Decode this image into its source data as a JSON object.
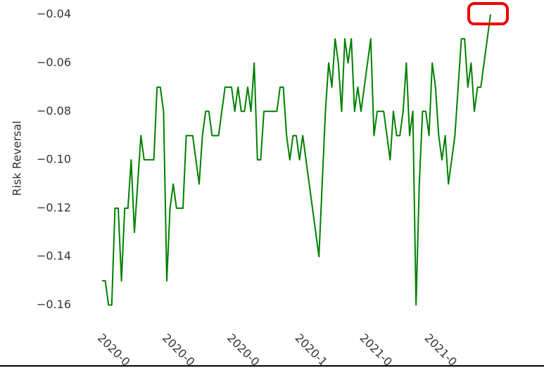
{
  "chart_data": {
    "type": "line",
    "y_label": "Risk Reversal",
    "categories": [
      "2020-0",
      null,
      null,
      null,
      null,
      null,
      null,
      null,
      null,
      null,
      null,
      null,
      null,
      null,
      null,
      null,
      null,
      null,
      null,
      null,
      "2020-0",
      null,
      null,
      null,
      null,
      null,
      null,
      null,
      null,
      null,
      null,
      null,
      null,
      null,
      null,
      null,
      null,
      null,
      null,
      null,
      "2020-0",
      null,
      null,
      null,
      null,
      null,
      null,
      null,
      null,
      null,
      null,
      null,
      null,
      null,
      null,
      null,
      null,
      null,
      null,
      null,
      null,
      "2020-1",
      null,
      null,
      null,
      null,
      null,
      null,
      null,
      null,
      null,
      null,
      null,
      null,
      null,
      null,
      null,
      null,
      null,
      null,
      null,
      "2021-0",
      null,
      null,
      null,
      null,
      null,
      null,
      null,
      null,
      null,
      null,
      null,
      null,
      null,
      null,
      null,
      null,
      null,
      null,
      null,
      "2021-0",
      null,
      null,
      null,
      null,
      null,
      null,
      null,
      null,
      null,
      null,
      null,
      null,
      null,
      null,
      null,
      null,
      null,
      null,
      null
    ],
    "series": [
      {
        "name": "Risk Reversal",
        "color": "#008000",
        "values": [
          -0.15,
          -0.15,
          -0.16,
          -0.16,
          -0.12,
          -0.12,
          -0.15,
          -0.12,
          -0.12,
          -0.1,
          -0.13,
          -0.11,
          -0.09,
          -0.1,
          -0.1,
          -0.1,
          -0.1,
          -0.07,
          -0.07,
          -0.08,
          -0.15,
          -0.12,
          -0.11,
          -0.12,
          -0.12,
          -0.12,
          -0.09,
          -0.09,
          -0.09,
          -0.1,
          -0.11,
          -0.09,
          -0.08,
          -0.08,
          -0.09,
          -0.09,
          -0.09,
          -0.08,
          -0.07,
          -0.07,
          -0.07,
          -0.08,
          -0.07,
          -0.08,
          -0.08,
          -0.07,
          -0.08,
          -0.06,
          -0.1,
          -0.1,
          -0.08,
          -0.08,
          -0.08,
          -0.08,
          -0.08,
          -0.07,
          -0.07,
          -0.09,
          -0.1,
          -0.09,
          -0.09,
          -0.1,
          -0.09,
          -0.1,
          -0.11,
          -0.12,
          -0.13,
          -0.14,
          -0.11,
          -0.08,
          -0.06,
          -0.07,
          -0.05,
          -0.06,
          -0.08,
          -0.05,
          -0.06,
          -0.05,
          -0.08,
          -0.07,
          -0.08,
          -0.07,
          -0.06,
          -0.05,
          -0.09,
          -0.08,
          -0.08,
          -0.08,
          -0.09,
          -0.1,
          -0.08,
          -0.09,
          -0.09,
          -0.08,
          -0.06,
          -0.09,
          -0.08,
          -0.16,
          -0.11,
          -0.08,
          -0.08,
          -0.09,
          -0.06,
          -0.07,
          -0.09,
          -0.1,
          -0.09,
          -0.11,
          -0.1,
          -0.09,
          -0.07,
          -0.05,
          -0.05,
          -0.07,
          -0.06,
          -0.08,
          -0.07,
          -0.07,
          -0.06,
          -0.05,
          -0.04
        ]
      }
    ],
    "ylim": [
      -0.186,
      -0.034
    ],
    "yticks": [
      {
        "value": -0.04,
        "label": "−0.04"
      },
      {
        "value": -0.06,
        "label": "−0.06"
      },
      {
        "value": -0.08,
        "label": "−0.08"
      },
      {
        "value": -0.1,
        "label": "−0.10"
      },
      {
        "value": -0.12,
        "label": "−0.12"
      },
      {
        "value": -0.14,
        "label": "−0.14"
      },
      {
        "value": -0.16,
        "label": "−0.16"
      }
    ],
    "grid": false
  }
}
